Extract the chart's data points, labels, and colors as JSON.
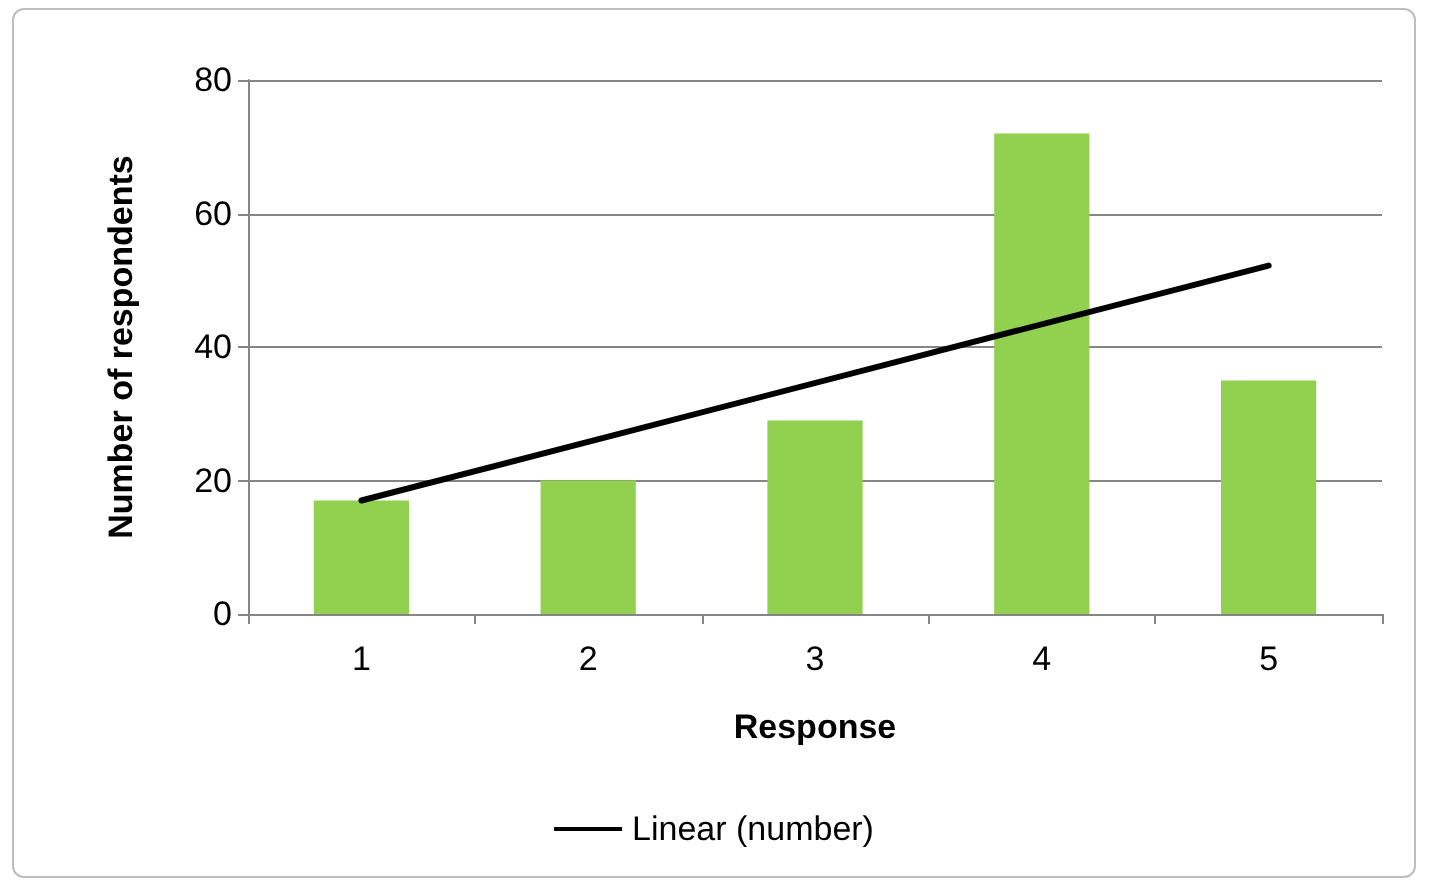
{
  "chart_data": {
    "type": "bar",
    "xlabel": "Response",
    "ylabel": "Number of respondents",
    "categories": [
      "1",
      "2",
      "3",
      "4",
      "5"
    ],
    "series": [
      {
        "color": "#92d050",
        "values": [
          17,
          20,
          29,
          72,
          35
        ]
      },
      {
        "type": "line",
        "name": "Linear (number)",
        "color": "#000000",
        "x": [
          "1",
          "5"
        ],
        "values": [
          17,
          52.2
        ]
      }
    ],
    "ylim": [
      0,
      80
    ],
    "yticks": [
      0,
      20,
      40,
      60,
      80
    ],
    "grid": "y",
    "legend": "bottom",
    "marker": "none"
  }
}
